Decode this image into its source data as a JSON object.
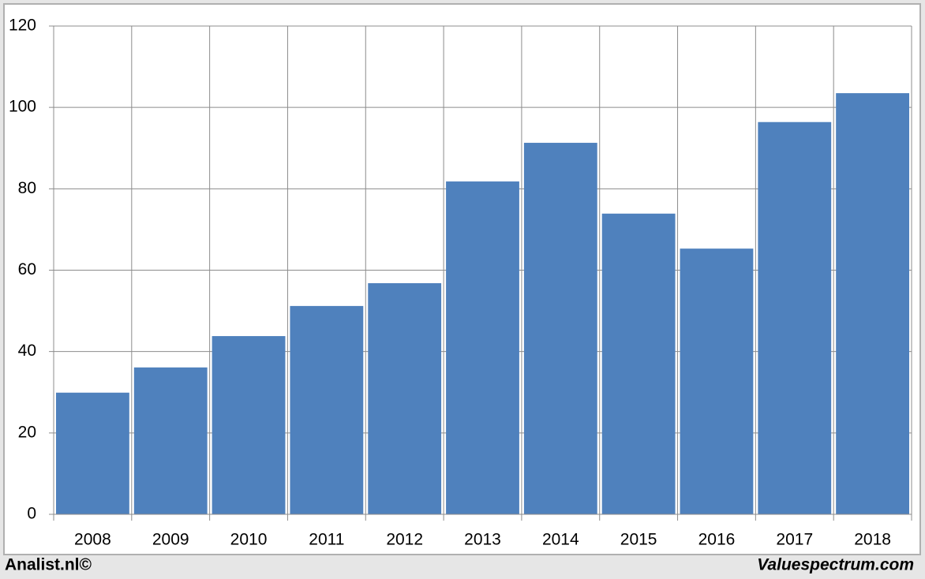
{
  "chart_data": {
    "type": "bar",
    "categories": [
      "2008",
      "2009",
      "2010",
      "2011",
      "2012",
      "2013",
      "2014",
      "2015",
      "2016",
      "2017",
      "2018"
    ],
    "values": [
      29.9,
      36.1,
      43.8,
      51.2,
      56.8,
      81.8,
      91.3,
      73.9,
      65.3,
      96.4,
      103.5
    ],
    "color": "#4f81bd",
    "ylim": [
      0,
      120
    ],
    "yticks": [
      0,
      20,
      40,
      60,
      80,
      100,
      120
    ],
    "grid": true,
    "source_left": "Analist.nl©",
    "source_right": "Valuespectrum.com"
  }
}
